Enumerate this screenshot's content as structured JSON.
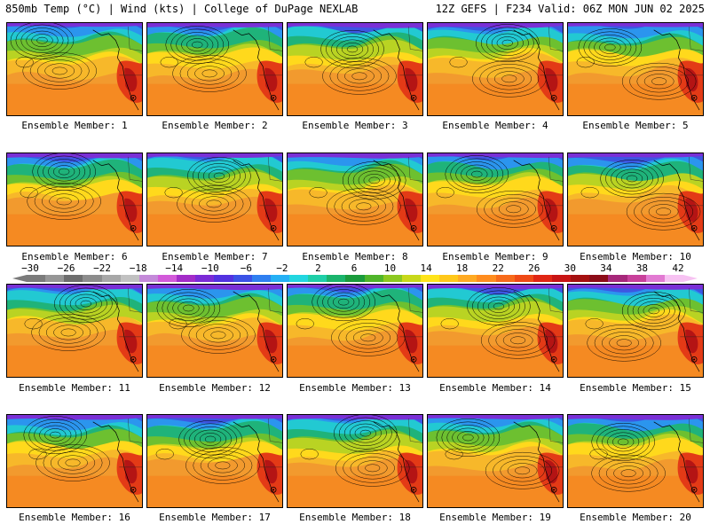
{
  "header": {
    "left": "850mb Temp (°C) | Wind (kts) | College of DuPage NEXLAB",
    "right": "12Z GEFS | F234 Valid: 06Z MON JUN 02 2025"
  },
  "members": [
    "Ensemble Member: 1",
    "Ensemble Member: 2",
    "Ensemble Member: 3",
    "Ensemble Member: 4",
    "Ensemble Member: 5",
    "Ensemble Member: 6",
    "Ensemble Member: 7",
    "Ensemble Member: 8",
    "Ensemble Member: 9",
    "Ensemble Member: 10",
    "Ensemble Member: 11",
    "Ensemble Member: 12",
    "Ensemble Member: 13",
    "Ensemble Member: 14",
    "Ensemble Member: 15",
    "Ensemble Member: 16",
    "Ensemble Member: 17",
    "Ensemble Member: 18",
    "Ensemble Member: 19",
    "Ensemble Member: 20"
  ],
  "colorbar": {
    "labels": [
      "−30",
      "−26",
      "−22",
      "−18",
      "−14",
      "−10",
      "−6",
      "−2",
      "2",
      "6",
      "10",
      "14",
      "18",
      "22",
      "26",
      "30",
      "34",
      "38",
      "42"
    ],
    "colors": [
      "#7b7b7b",
      "#969696",
      "#6e6e6e",
      "#8c8c8c",
      "#a7a7a7",
      "#c1c1c1",
      "#c48ad9",
      "#d25ad9",
      "#a32cc8",
      "#7b2bd6",
      "#5232e0",
      "#3a52e6",
      "#2f7ff0",
      "#25b0f5",
      "#22d6e0",
      "#1fcfa8",
      "#1ab46c",
      "#1a9b3c",
      "#4fb52a",
      "#8cc820",
      "#c8d81a",
      "#ffe41a",
      "#ffc81a",
      "#ffaa22",
      "#ff8c1e",
      "#f76a1a",
      "#ef4a16",
      "#e02614",
      "#c81414",
      "#a51010",
      "#8c0c18",
      "#a6287a",
      "#c8409a",
      "#e27ad2",
      "#f7c2f2"
    ]
  }
}
